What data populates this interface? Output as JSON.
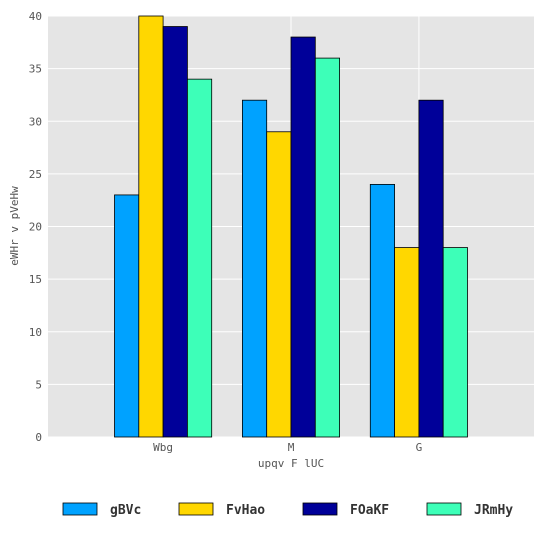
{
  "chart_data": {
    "type": "bar",
    "categories": [
      "Wbg",
      "M",
      "G"
    ],
    "series": [
      {
        "name": "gBVc",
        "values": [
          23,
          32,
          24
        ],
        "color": "#00a2ff"
      },
      {
        "name": "FvHao",
        "values": [
          40,
          29,
          18
        ],
        "color": "#ffd700"
      },
      {
        "name": "FOaKF",
        "values": [
          39,
          38,
          32
        ],
        "color": "#000099"
      },
      {
        "name": "JRmHy",
        "values": [
          34,
          36,
          18
        ],
        "color": "#3dffb8"
      }
    ],
    "title": "",
    "xlabel": "upqv F lUC",
    "ylabel": "eWHr v pVeHw",
    "ylim": [
      0,
      40
    ],
    "yticks": [
      0,
      5,
      10,
      15,
      20,
      25,
      30,
      35,
      40
    ],
    "grid": true,
    "legend_position": "bottom",
    "colors": {
      "plot_background": "#e5e5e5",
      "grid": "#ffffff"
    }
  }
}
